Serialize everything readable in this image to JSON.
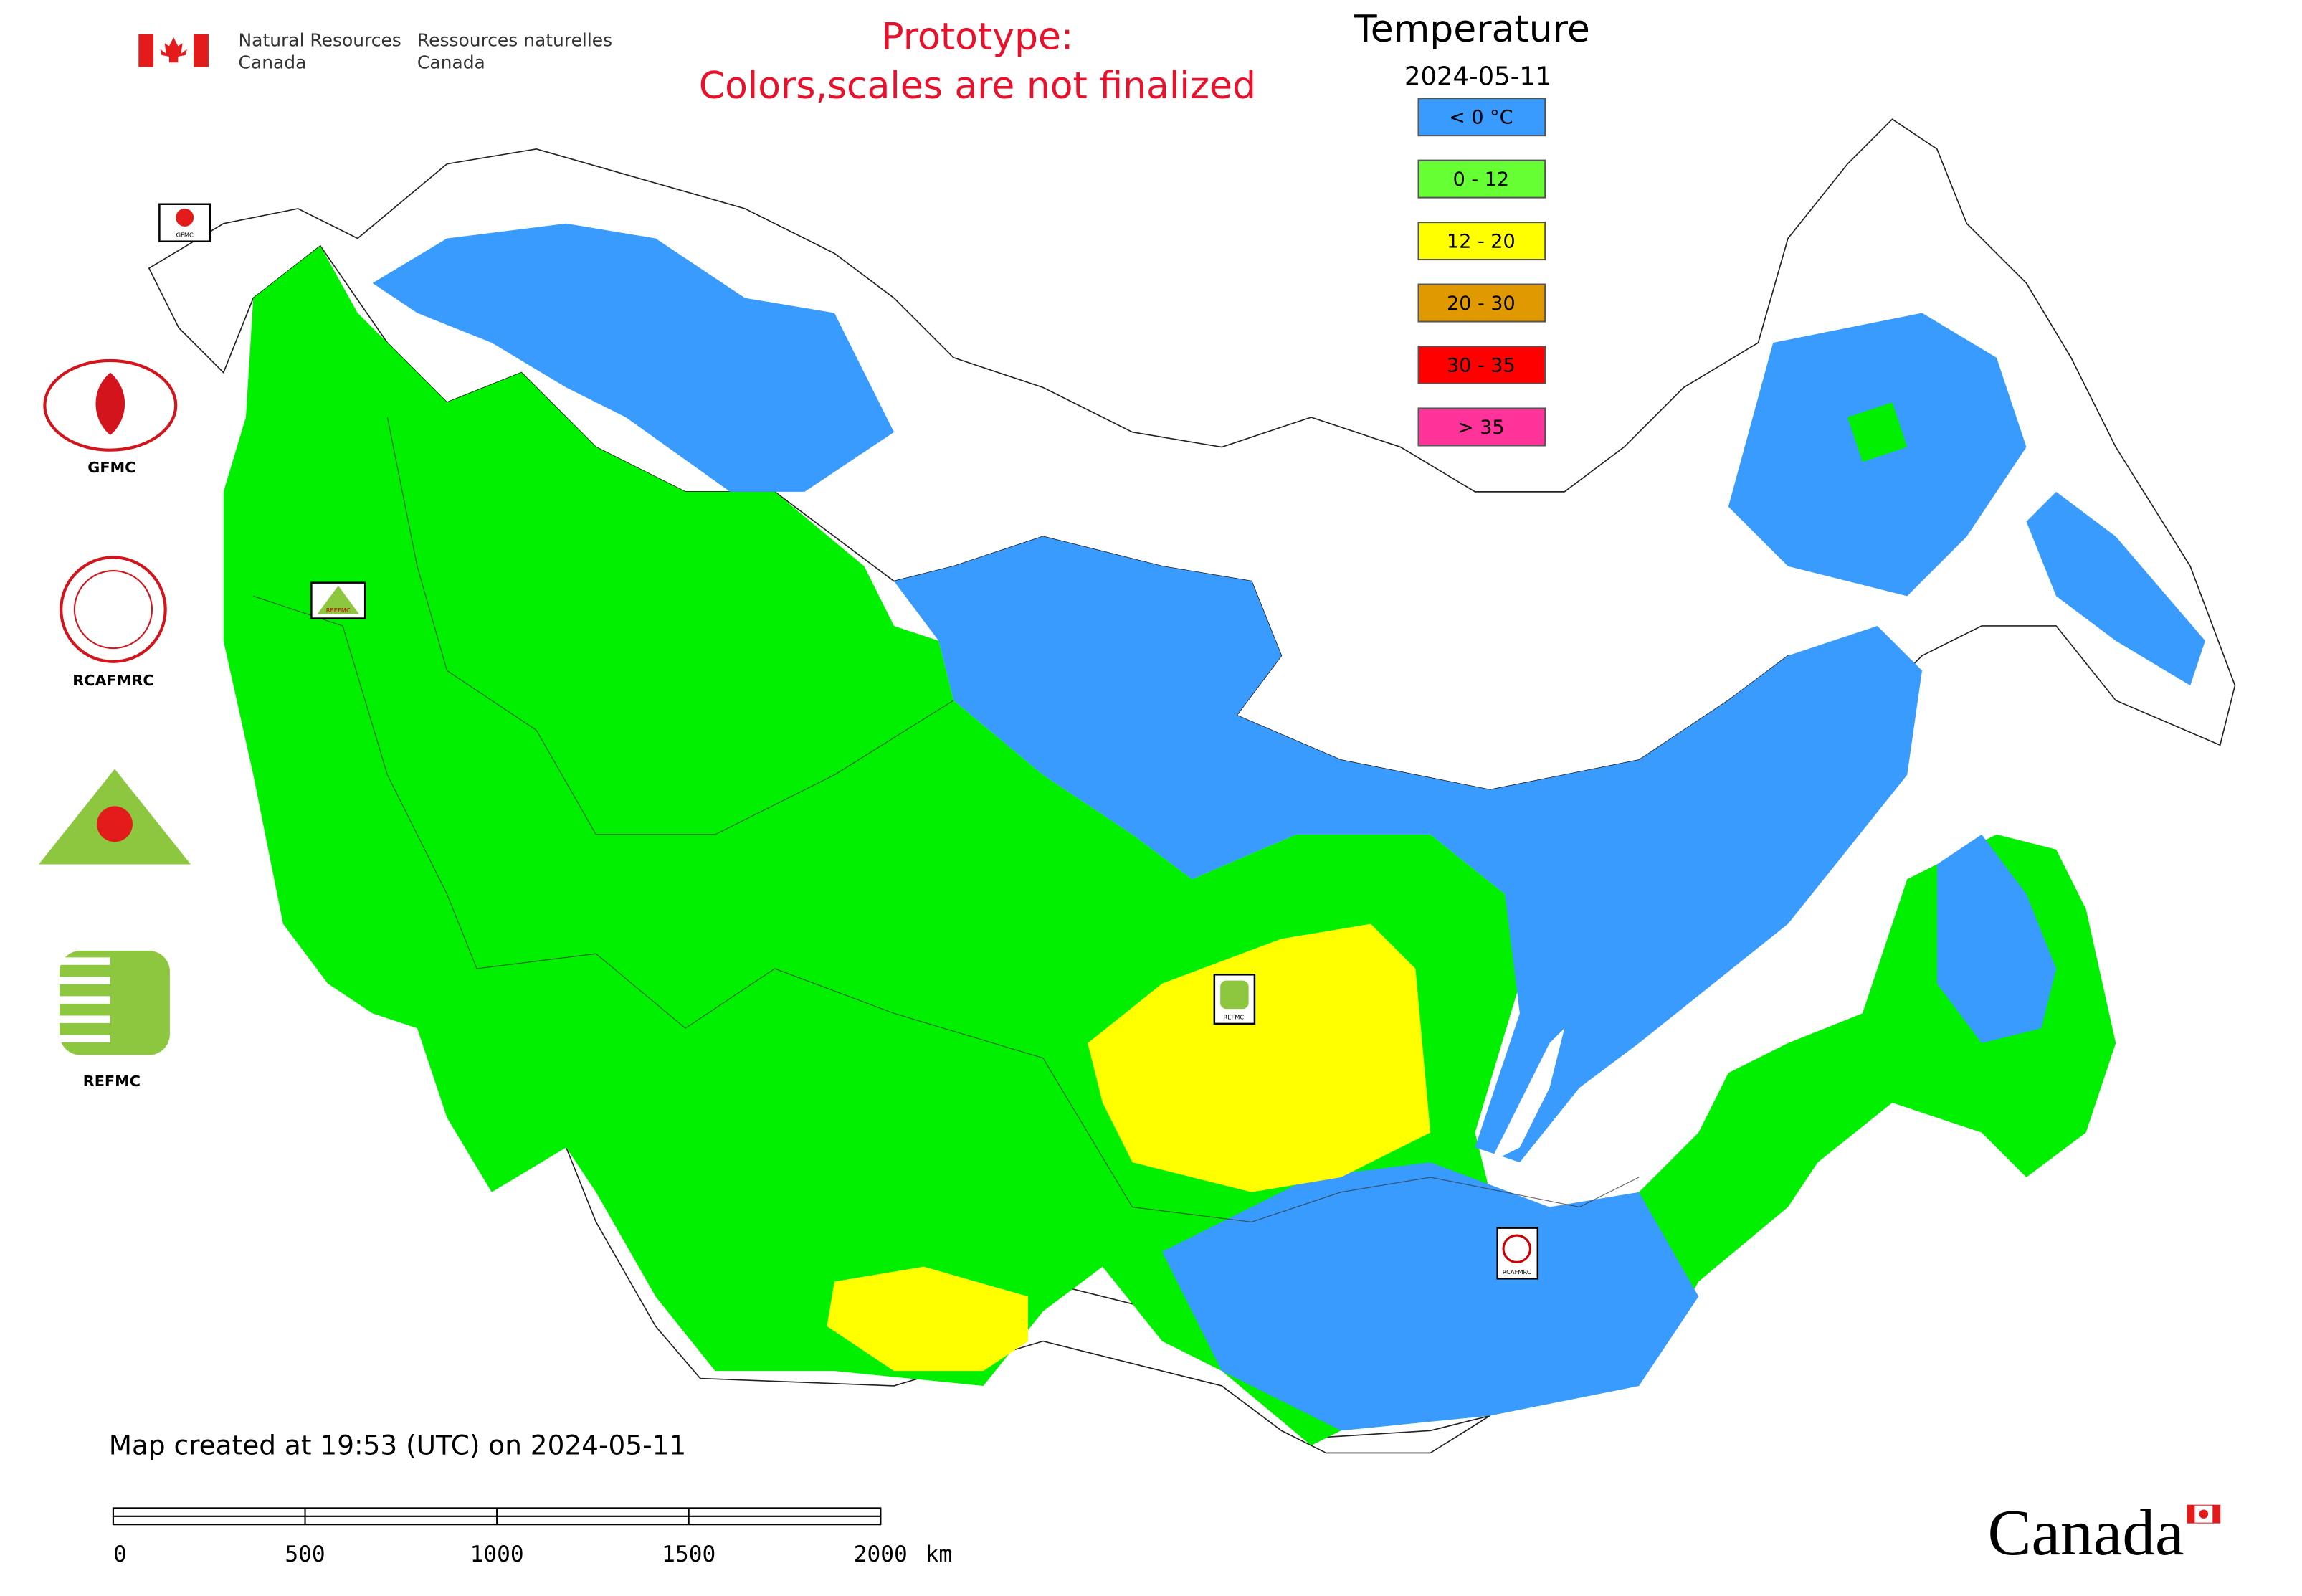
{
  "header": {
    "agency_en_1": "Natural Resources",
    "agency_en_2": "Canada",
    "agency_fr_1": "Ressources naturelles",
    "agency_fr_2": "Canada"
  },
  "notice": {
    "line1": "Prototype:",
    "line2": "Colors,scales are not finalized"
  },
  "legend": {
    "title": "Temperature",
    "date": "2024-05-11",
    "items": [
      {
        "label": "< 0 °C",
        "color": "#3a9bff"
      },
      {
        "label": "0 - 12",
        "color": "#66ff33"
      },
      {
        "label": "12 - 20",
        "color": "#ffff00"
      },
      {
        "label": "20 - 30",
        "color": "#e09a00"
      },
      {
        "label": "30 - 35",
        "color": "#ff0000"
      },
      {
        "label": "> 35",
        "color": "#ff3399"
      }
    ]
  },
  "logos": [
    "GFMC",
    "RCAFMRC",
    "REFMC"
  ],
  "markers": [
    "GFMC",
    "REEFMC",
    "REFMC",
    "RCAFMRC"
  ],
  "footer": {
    "created": "Map created at 19:53 (UTC) on 2024-05-11",
    "wordmark": "Canada"
  },
  "scale_bar": {
    "ticks": [
      0,
      500,
      1000,
      1500,
      2000
    ],
    "unit": "km"
  }
}
